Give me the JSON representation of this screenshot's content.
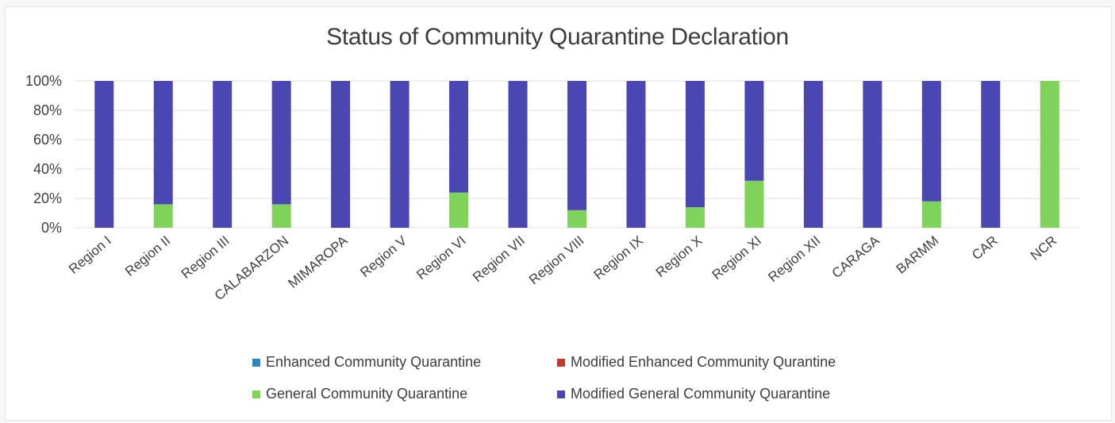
{
  "chart_data": {
    "type": "bar",
    "stacked": true,
    "title": "Status of Community Quarantine Declaration",
    "categories": [
      "Region I",
      "Region II",
      "Region III",
      "CALABARZON",
      "MIMAROPA",
      "Region V",
      "Region VI",
      "Region VII",
      "Region VIII",
      "Region IX",
      "Region X",
      "Region XI",
      "Region XII",
      "CARAGA",
      "BARMM",
      "CAR",
      "NCR"
    ],
    "ylim": [
      0,
      100
    ],
    "y_ticks": [
      "0%",
      "20%",
      "40%",
      "60%",
      "80%",
      "100%"
    ],
    "grid": true,
    "legend_placement": "bottom",
    "series": [
      {
        "name": "Enhanced Community Quarantine",
        "color": "#2e86c1",
        "values": [
          0,
          0,
          0,
          0,
          0,
          0,
          0,
          0,
          0,
          0,
          0,
          0,
          0,
          0,
          0,
          0,
          0
        ]
      },
      {
        "name": "Modified Enhanced Community Qurantine",
        "color": "#c0392b",
        "values": [
          0,
          0,
          0,
          0,
          0,
          0,
          0,
          0,
          0,
          0,
          0,
          0,
          0,
          0,
          0,
          0,
          0
        ]
      },
      {
        "name": "General Community Quarantine",
        "color": "#7fd35a",
        "values": [
          0,
          16,
          0,
          16,
          0,
          0,
          24,
          0,
          12,
          0,
          14,
          32,
          0,
          0,
          18,
          0,
          100
        ]
      },
      {
        "name": "Modified General Community Quarantine",
        "color": "#4a46b2",
        "values": [
          100,
          84,
          100,
          84,
          100,
          100,
          76,
          100,
          88,
          100,
          86,
          68,
          100,
          100,
          82,
          100,
          0
        ]
      }
    ]
  }
}
